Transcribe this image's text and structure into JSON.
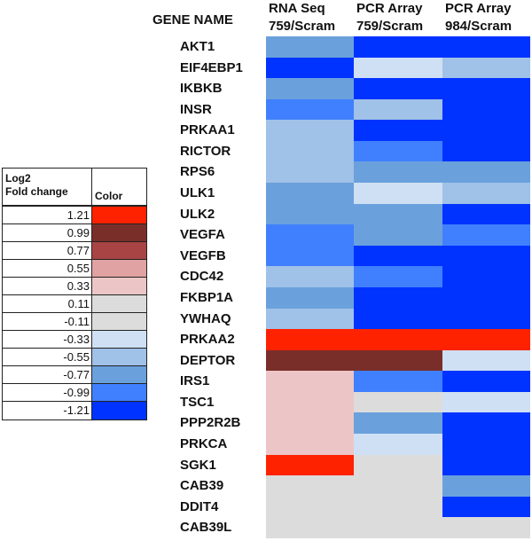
{
  "legend": {
    "header_value": "Log2 Fold change",
    "header_value_line1": "Log2",
    "header_value_line2": "Fold change",
    "header_color": "Color",
    "rows": [
      {
        "value": "1.21",
        "color": "#ff2200"
      },
      {
        "value": "0.99",
        "color": "#7a2e2a"
      },
      {
        "value": "0.77",
        "color": "#a84444"
      },
      {
        "value": "0.55",
        "color": "#e0a2a2"
      },
      {
        "value": "0.33",
        "color": "#ecc6c6"
      },
      {
        "value": "0.11",
        "color": "#dcdcdc"
      },
      {
        "value": "-0.11",
        "color": "#dcdcdc"
      },
      {
        "value": "-0.33",
        "color": "#cfe0f4"
      },
      {
        "value": "-0.55",
        "color": "#a0c1e8"
      },
      {
        "value": "-0.77",
        "color": "#6aa1dc"
      },
      {
        "value": "-0.99",
        "color": "#4080ff"
      },
      {
        "value": "-1.21",
        "color": "#0033ff"
      }
    ]
  },
  "heatmap": {
    "gene_header": "GENE NAME",
    "columns": [
      {
        "line1": "RNA Seq",
        "line2": "759/Scram"
      },
      {
        "line1": "PCR Array",
        "line2": "759/Scram"
      },
      {
        "line1": "PCR Array",
        "line2": "984/Scram"
      }
    ]
  },
  "chart_data": {
    "type": "heatmap",
    "title": "",
    "xlabel": "",
    "ylabel": "GENE NAME",
    "x": [
      "RNA Seq 759/Scram",
      "PCR Array 759/Scram",
      "PCR Array 984/Scram"
    ],
    "legend_title": "Log2 Fold change",
    "color_scale": [
      {
        "value": 1.21,
        "color": "#ff2200"
      },
      {
        "value": 0.99,
        "color": "#7a2e2a"
      },
      {
        "value": 0.77,
        "color": "#a84444"
      },
      {
        "value": 0.55,
        "color": "#e0a2a2"
      },
      {
        "value": 0.33,
        "color": "#ecc6c6"
      },
      {
        "value": 0.11,
        "color": "#dcdcdc"
      },
      {
        "value": -0.11,
        "color": "#dcdcdc"
      },
      {
        "value": -0.33,
        "color": "#cfe0f4"
      },
      {
        "value": -0.55,
        "color": "#a0c1e8"
      },
      {
        "value": -0.77,
        "color": "#6aa1dc"
      },
      {
        "value": -0.99,
        "color": "#4080ff"
      },
      {
        "value": -1.21,
        "color": "#0033ff"
      }
    ],
    "rows": [
      {
        "gene": "AKT1",
        "values": [
          -0.77,
          -1.21,
          -1.21
        ]
      },
      {
        "gene": "EIF4EBP1",
        "values": [
          -1.21,
          -0.33,
          -0.55
        ]
      },
      {
        "gene": "IKBKB",
        "values": [
          -0.77,
          -1.21,
          -1.21
        ]
      },
      {
        "gene": "INSR",
        "values": [
          -0.99,
          -0.55,
          -1.21
        ]
      },
      {
        "gene": "PRKAA1",
        "values": [
          -0.55,
          -1.21,
          -1.21
        ]
      },
      {
        "gene": "RICTOR",
        "values": [
          -0.55,
          -0.99,
          -1.21
        ]
      },
      {
        "gene": "RPS6",
        "values": [
          -0.55,
          -0.77,
          -0.77
        ]
      },
      {
        "gene": "ULK1",
        "values": [
          -0.77,
          -0.33,
          -0.55
        ]
      },
      {
        "gene": "ULK2",
        "values": [
          -0.77,
          -0.77,
          -1.21
        ]
      },
      {
        "gene": "VEGFA",
        "values": [
          -0.99,
          -0.77,
          -0.99
        ]
      },
      {
        "gene": "VEGFB",
        "values": [
          -0.99,
          -1.21,
          -1.21
        ]
      },
      {
        "gene": "CDC42",
        "values": [
          -0.55,
          -0.99,
          -1.21
        ]
      },
      {
        "gene": "FKBP1A",
        "values": [
          -0.77,
          -1.21,
          -1.21
        ]
      },
      {
        "gene": "YWHAQ",
        "values": [
          -0.55,
          -1.21,
          -1.21
        ]
      },
      {
        "gene": "PRKAA2",
        "values": [
          1.21,
          1.21,
          1.21
        ]
      },
      {
        "gene": "DEPTOR",
        "values": [
          0.99,
          0.99,
          -0.33
        ]
      },
      {
        "gene": "IRS1",
        "values": [
          0.33,
          -0.99,
          -1.21
        ]
      },
      {
        "gene": "TSC1",
        "values": [
          0.33,
          0.11,
          -0.33
        ]
      },
      {
        "gene": "PPP2R2B",
        "values": [
          0.33,
          -0.77,
          -1.21
        ]
      },
      {
        "gene": "PRKCA",
        "values": [
          0.33,
          -0.33,
          -1.21
        ]
      },
      {
        "gene": "SGK1",
        "values": [
          1.21,
          0.11,
          -1.21
        ]
      },
      {
        "gene": "CAB39",
        "values": [
          0.11,
          0.11,
          -0.77
        ]
      },
      {
        "gene": "DDIT4",
        "values": [
          0.11,
          0.11,
          -1.21
        ]
      },
      {
        "gene": "CAB39L",
        "values": [
          0.11,
          0.11,
          0.11
        ]
      }
    ]
  }
}
